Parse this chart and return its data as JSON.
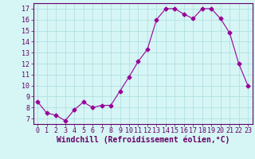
{
  "x": [
    0,
    1,
    2,
    3,
    4,
    5,
    6,
    7,
    8,
    9,
    10,
    11,
    12,
    13,
    14,
    15,
    16,
    17,
    18,
    19,
    20,
    21,
    22,
    23
  ],
  "y": [
    8.5,
    7.5,
    7.3,
    6.8,
    7.8,
    8.5,
    8.0,
    8.2,
    8.2,
    9.5,
    10.8,
    12.2,
    13.3,
    16.0,
    17.0,
    17.0,
    16.5,
    16.1,
    17.0,
    17.0,
    16.1,
    14.8,
    12.0,
    10.0
  ],
  "line_color": "#990099",
  "marker": "D",
  "marker_size": 2.5,
  "bg_color": "#d6f5f5",
  "grid_color": "#aadddd",
  "xlabel": "Windchill (Refroidissement éolien,°C)",
  "ylabel": "",
  "xlim": [
    -0.5,
    23.5
  ],
  "ylim": [
    6.5,
    17.5
  ],
  "yticks": [
    7,
    8,
    9,
    10,
    11,
    12,
    13,
    14,
    15,
    16,
    17
  ],
  "xticks": [
    0,
    1,
    2,
    3,
    4,
    5,
    6,
    7,
    8,
    9,
    10,
    11,
    12,
    13,
    14,
    15,
    16,
    17,
    18,
    19,
    20,
    21,
    22,
    23
  ],
  "tick_label_fontsize": 6,
  "xlabel_fontsize": 7,
  "axis_color": "#660066",
  "tick_color": "#660066"
}
